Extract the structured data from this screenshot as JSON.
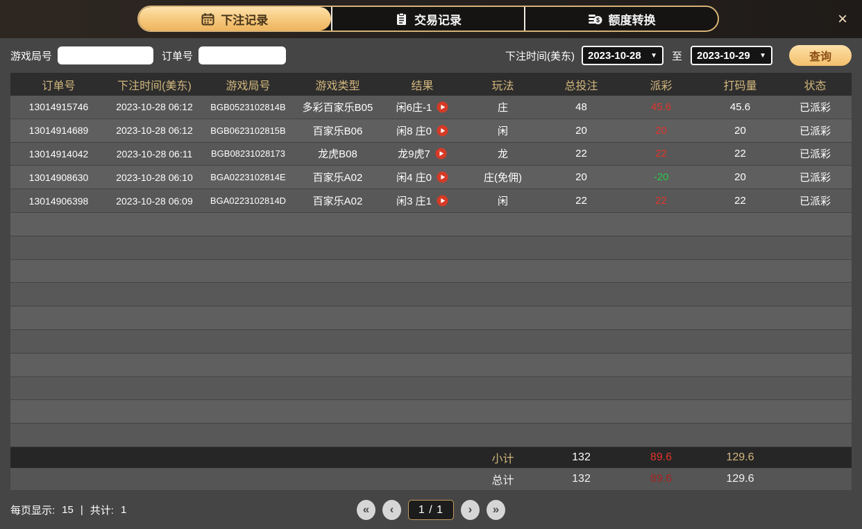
{
  "colors": {
    "accent_gold": "#f3c06c",
    "header_text_gold": "#d3b77d",
    "payout_red": "#e0352a",
    "payout_green": "#27c846",
    "row_bg": "#585858",
    "panel_bg": "#454545",
    "topbar_bg": "#272220"
  },
  "topbar": {
    "tabs": [
      {
        "label": "下注记录",
        "icon": "calendar-icon",
        "active": true
      },
      {
        "label": "交易记录",
        "icon": "clipboard-icon",
        "active": false
      },
      {
        "label": "额度转换",
        "icon": "coins-icon",
        "active": false
      }
    ],
    "close_label": "×"
  },
  "filters": {
    "game_round_label": "游戏局号",
    "game_round_value": "",
    "order_no_label": "订单号",
    "order_no_value": "",
    "bet_time_label": "下注时间(美东)",
    "date_from": "2023-10-28",
    "date_to": "2023-10-29",
    "caret": "▼",
    "to_label": "至",
    "search_button": "查询"
  },
  "table": {
    "headers": [
      "订单号",
      "下注时间(美东)",
      "游戏局号",
      "游戏类型",
      "结果",
      "玩法",
      "总投注",
      "派彩",
      "打码量",
      "状态"
    ],
    "rows": [
      {
        "order_no": "13014915746",
        "bet_time": "2023-10-28 06:12",
        "game_round": "BGB0523102814B",
        "game_type": "多彩百家乐B05",
        "result": "闲6庄-1",
        "play": "庄",
        "total_bet": "48",
        "payout": "45.6",
        "payout_color": "red",
        "rolling": "45.6",
        "status": "已派彩"
      },
      {
        "order_no": "13014914689",
        "bet_time": "2023-10-28 06:12",
        "game_round": "BGB0623102815B",
        "game_type": "百家乐B06",
        "result": "闲8 庄0",
        "play": "闲",
        "total_bet": "20",
        "payout": "20",
        "payout_color": "red",
        "rolling": "20",
        "status": "已派彩"
      },
      {
        "order_no": "13014914042",
        "bet_time": "2023-10-28 06:11",
        "game_round": "BGB08231028173",
        "game_type": "龙虎B08",
        "result": "龙9虎7",
        "play": "龙",
        "total_bet": "22",
        "payout": "22",
        "payout_color": "red",
        "rolling": "22",
        "status": "已派彩"
      },
      {
        "order_no": "13014908630",
        "bet_time": "2023-10-28 06:10",
        "game_round": "BGA0223102814E",
        "game_type": "百家乐A02",
        "result": "闲4 庄0",
        "play": "庄(免佣)",
        "total_bet": "20",
        "payout": "-20",
        "payout_color": "green",
        "rolling": "20",
        "status": "已派彩"
      },
      {
        "order_no": "13014906398",
        "bet_time": "2023-10-28 06:09",
        "game_round": "BGA0223102814D",
        "game_type": "百家乐A02",
        "result": "闲3 庄1",
        "play": "闲",
        "total_bet": "22",
        "payout": "22",
        "payout_color": "red",
        "rolling": "22",
        "status": "已派彩"
      }
    ],
    "empty_row_count": 10,
    "subtotal": {
      "label": "小计",
      "total_bet": "132",
      "payout": "89.6",
      "rolling": "129.6"
    },
    "grand_total": {
      "label": "总计",
      "total_bet": "132",
      "payout": "89.6",
      "rolling": "129.6"
    }
  },
  "pagination": {
    "per_page_label": "每页显示:",
    "per_page": "15",
    "divider": "|",
    "total_label": "共计:",
    "total": "1",
    "first": "«",
    "prev": "‹",
    "page_indicator": "1 / 1",
    "next": "›",
    "last": "»"
  }
}
